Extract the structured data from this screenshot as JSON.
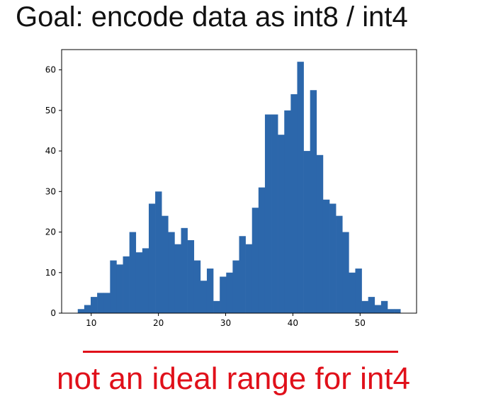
{
  "slide": {
    "title": "Goal: encode data as int8 / int4",
    "caption": "not an ideal range for int4",
    "caption_color": "#e0101a",
    "divider_color": "#e0101a"
  },
  "chart_data": {
    "type": "bar",
    "title": "",
    "xlabel": "",
    "ylabel": "",
    "bar_color": "#2c67ab",
    "xlim": [
      5.6,
      58.4
    ],
    "ylim": [
      0,
      65
    ],
    "x_ticks": [
      10,
      20,
      30,
      40,
      50
    ],
    "y_ticks": [
      0,
      10,
      20,
      30,
      40,
      50,
      60
    ],
    "grid": false,
    "bin_start": 8,
    "bin_width": 0.96,
    "values": [
      1,
      2,
      4,
      5,
      5,
      13,
      12,
      14,
      20,
      15,
      16,
      27,
      30,
      24,
      20,
      17,
      21,
      18,
      13,
      8,
      11,
      3,
      9,
      10,
      13,
      19,
      17,
      26,
      31,
      49,
      49,
      44,
      50,
      54,
      62,
      40,
      55,
      39,
      28,
      27,
      24,
      20,
      10,
      11,
      3,
      4,
      2,
      3,
      1,
      1
    ]
  }
}
